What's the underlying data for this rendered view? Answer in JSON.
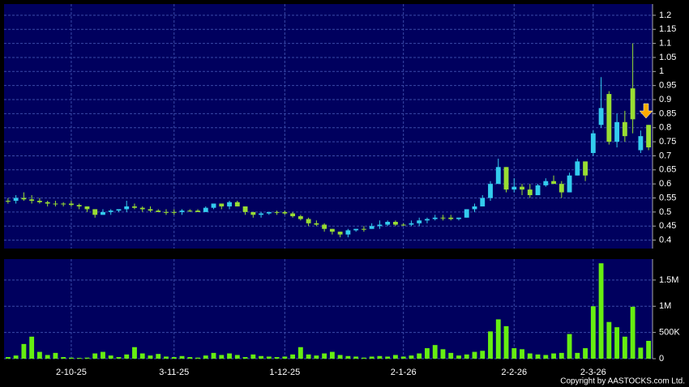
{
  "chart_data": {
    "type": "candlestick",
    "open": [
      0.54,
      0.54,
      0.55,
      0.545,
      0.54,
      0.535,
      0.53,
      0.53,
      0.53,
      0.525,
      0.52,
      0.51,
      0.49,
      0.5,
      0.505,
      0.51,
      0.52,
      0.515,
      0.51,
      0.505,
      0.5,
      0.5,
      0.5,
      0.505,
      0.505,
      0.5,
      0.515,
      0.53,
      0.52,
      0.535,
      0.52,
      0.5,
      0.49,
      0.495,
      0.5,
      0.5,
      0.495,
      0.485,
      0.475,
      0.46,
      0.455,
      0.44,
      0.43,
      0.42,
      0.435,
      0.44,
      0.44,
      0.45,
      0.455,
      0.465,
      0.455,
      0.455,
      0.46,
      0.47,
      0.475,
      0.48,
      0.48,
      0.475,
      0.48,
      0.51,
      0.52,
      0.55,
      0.6,
      0.66,
      0.58,
      0.59,
      0.58,
      0.56,
      0.595,
      0.61,
      0.6,
      0.57,
      0.63,
      0.68,
      0.71,
      0.81,
      0.92,
      0.75,
      0.82,
      0.94,
      0.72,
      0.81
    ],
    "high": [
      0.55,
      0.56,
      0.57,
      0.56,
      0.55,
      0.54,
      0.54,
      0.535,
      0.54,
      0.53,
      0.52,
      0.51,
      0.51,
      0.51,
      0.51,
      0.54,
      0.53,
      0.52,
      0.52,
      0.51,
      0.51,
      0.51,
      0.51,
      0.51,
      0.51,
      0.52,
      0.53,
      0.53,
      0.54,
      0.54,
      0.52,
      0.5,
      0.5,
      0.5,
      0.505,
      0.505,
      0.5,
      0.49,
      0.48,
      0.47,
      0.46,
      0.44,
      0.43,
      0.44,
      0.44,
      0.45,
      0.46,
      0.47,
      0.47,
      0.47,
      0.46,
      0.47,
      0.48,
      0.48,
      0.49,
      0.49,
      0.49,
      0.48,
      0.51,
      0.53,
      0.56,
      0.61,
      0.69,
      0.66,
      0.62,
      0.6,
      0.6,
      0.6,
      0.62,
      0.63,
      0.61,
      0.64,
      0.69,
      0.68,
      0.79,
      0.98,
      0.93,
      0.85,
      0.86,
      1.1,
      0.79,
      0.81
    ],
    "low": [
      0.53,
      0.53,
      0.54,
      0.53,
      0.53,
      0.52,
      0.52,
      0.52,
      0.52,
      0.51,
      0.5,
      0.48,
      0.49,
      0.49,
      0.5,
      0.5,
      0.51,
      0.5,
      0.5,
      0.5,
      0.49,
      0.49,
      0.49,
      0.5,
      0.5,
      0.5,
      0.51,
      0.51,
      0.51,
      0.52,
      0.49,
      0.48,
      0.48,
      0.49,
      0.49,
      0.49,
      0.48,
      0.47,
      0.45,
      0.45,
      0.43,
      0.42,
      0.41,
      0.41,
      0.43,
      0.43,
      0.44,
      0.44,
      0.45,
      0.45,
      0.45,
      0.45,
      0.45,
      0.46,
      0.47,
      0.47,
      0.47,
      0.47,
      0.48,
      0.5,
      0.52,
      0.54,
      0.6,
      0.57,
      0.57,
      0.56,
      0.55,
      0.56,
      0.59,
      0.6,
      0.55,
      0.57,
      0.63,
      0.61,
      0.7,
      0.8,
      0.74,
      0.73,
      0.75,
      0.78,
      0.71,
      0.72
    ],
    "close": [
      0.54,
      0.55,
      0.545,
      0.54,
      0.535,
      0.53,
      0.53,
      0.53,
      0.525,
      0.52,
      0.51,
      0.49,
      0.5,
      0.505,
      0.51,
      0.52,
      0.515,
      0.51,
      0.505,
      0.5,
      0.5,
      0.5,
      0.505,
      0.505,
      0.5,
      0.515,
      0.53,
      0.52,
      0.535,
      0.52,
      0.5,
      0.49,
      0.495,
      0.5,
      0.5,
      0.495,
      0.485,
      0.475,
      0.46,
      0.455,
      0.44,
      0.43,
      0.42,
      0.435,
      0.44,
      0.44,
      0.45,
      0.455,
      0.465,
      0.455,
      0.455,
      0.46,
      0.47,
      0.475,
      0.48,
      0.48,
      0.475,
      0.48,
      0.51,
      0.52,
      0.55,
      0.6,
      0.66,
      0.58,
      0.59,
      0.58,
      0.56,
      0.595,
      0.61,
      0.6,
      0.57,
      0.63,
      0.68,
      0.63,
      0.78,
      0.87,
      0.75,
      0.82,
      0.77,
      0.83,
      0.77,
      0.73
    ],
    "volume": [
      30000,
      60000,
      280000,
      420000,
      130000,
      70000,
      110000,
      30000,
      20000,
      15000,
      20000,
      100000,
      130000,
      60000,
      30000,
      80000,
      220000,
      100000,
      60000,
      90000,
      40000,
      30000,
      50000,
      30000,
      20000,
      60000,
      110000,
      70000,
      100000,
      70000,
      30000,
      80000,
      50000,
      40000,
      30000,
      40000,
      80000,
      220000,
      80000,
      60000,
      100000,
      130000,
      70000,
      50000,
      40000,
      20000,
      40000,
      50000,
      40000,
      70000,
      40000,
      60000,
      100000,
      200000,
      260000,
      180000,
      110000,
      60000,
      80000,
      130000,
      150000,
      520000,
      750000,
      620000,
      200000,
      180000,
      100000,
      80000,
      70000,
      100000,
      110000,
      470000,
      110000,
      200000,
      1000000,
      1820000,
      700000,
      600000,
      420000,
      990000,
      210000,
      340000
    ],
    "up_color": "#33ccee",
    "down_color": "#99dd33",
    "volume_color": "#66ee11",
    "ylim": [
      0.37,
      1.24
    ],
    "yticks": [
      0.4,
      0.45,
      0.5,
      0.55,
      0.6,
      0.65,
      0.7,
      0.75,
      0.8,
      0.85,
      0.9,
      0.95,
      1,
      1.05,
      1.1,
      1.15,
      1.2
    ],
    "y2lim": [
      0,
      1900000
    ],
    "y2ticks": [
      0,
      {
        "value": 500000,
        "label": "500K"
      },
      {
        "value": 1000000,
        "label": "1M"
      },
      {
        "value": 1500000,
        "label": "1.5M"
      }
    ],
    "xticks": [
      {
        "value": 8,
        "label": "2-10-25"
      },
      {
        "value": 21,
        "label": "3-11-25"
      },
      {
        "value": 35,
        "label": "1-12-25"
      },
      {
        "value": 50,
        "label": "2-1-26"
      },
      {
        "value": 64,
        "label": "2-2-26"
      },
      {
        "value": 74,
        "label": "2-3-26"
      }
    ],
    "grid": true,
    "copyright": "Copyright by AASTOCKS.com Ltd."
  }
}
